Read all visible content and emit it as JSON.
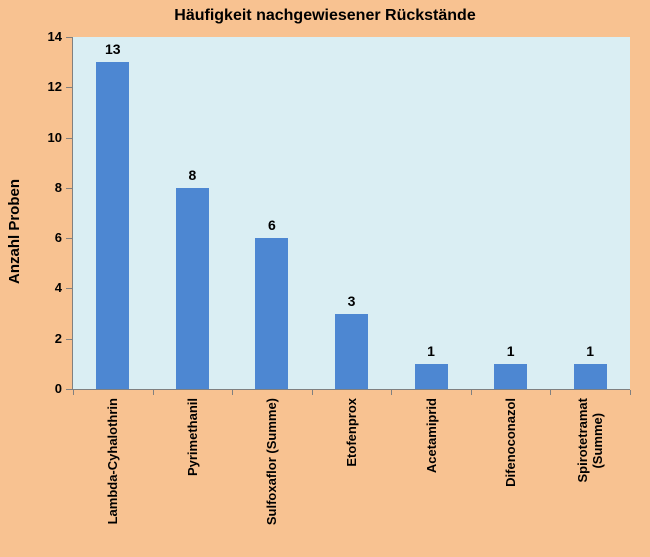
{
  "chart_data": {
    "type": "bar",
    "title": "Häufigkeit nachgewiesener Rückstände",
    "xlabel": "",
    "ylabel": "Anzahl Proben",
    "categories": [
      "Lambda-Cyhalothrin",
      "Pyrimethanil",
      "Sulfoxaflor (Summe)",
      "Etofenprox",
      "Acetamiprid",
      "Difenoconazol",
      "Spirotetramat (Summe)"
    ],
    "category_label_lines": [
      [
        "Lambda-Cyhalothrin"
      ],
      [
        "Pyrimethanil"
      ],
      [
        "Sulfoxaflor (Summe)"
      ],
      [
        "Etofenprox"
      ],
      [
        "Acetamiprid"
      ],
      [
        "Difenoconazol"
      ],
      [
        "Spirotetramat",
        "(Summe)"
      ]
    ],
    "values": [
      13,
      8,
      6,
      3,
      1,
      1,
      1
    ],
    "data_labels": [
      13,
      8,
      6,
      3,
      1,
      1,
      1
    ],
    "ylim": [
      0,
      14
    ],
    "yticks": [
      0,
      2,
      4,
      6,
      8,
      10,
      12,
      14
    ],
    "grid": false,
    "legend": "none",
    "colors": {
      "outer_background": "#f8c291",
      "plot_background": "#daeef3",
      "bar_fill": "#4d87d2",
      "axis": "#808080",
      "text": "#000000"
    }
  }
}
